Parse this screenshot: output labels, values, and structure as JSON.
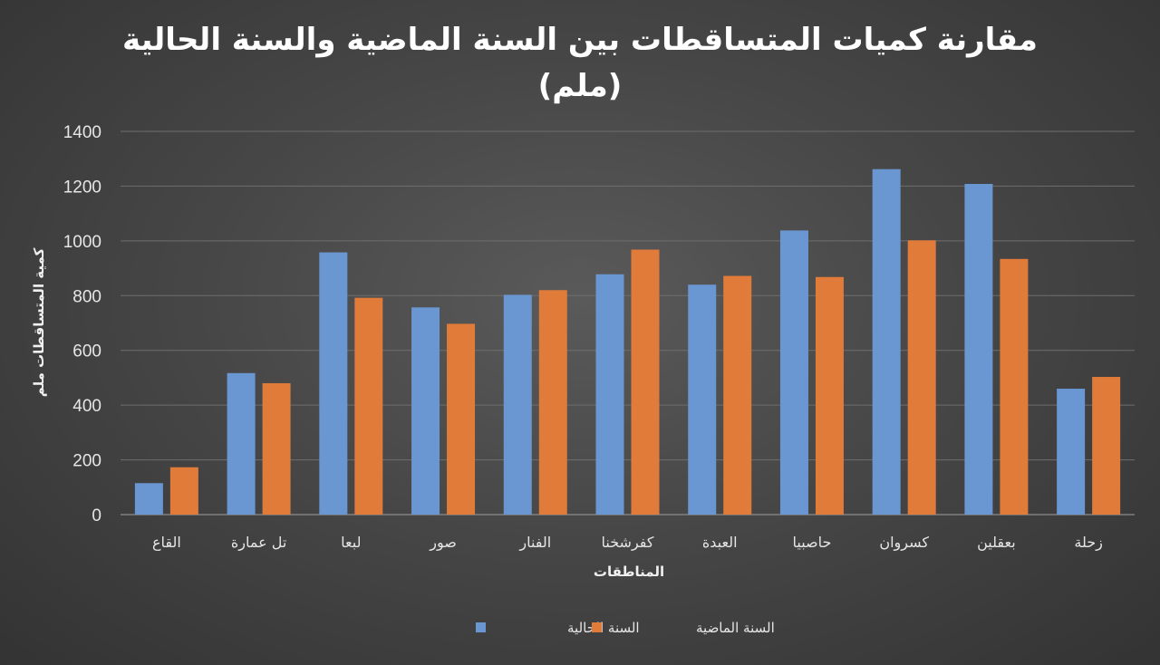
{
  "chart_data": {
    "type": "bar",
    "title_line1": "مقارنة كميات المتساقطات بين السنة الماضية والسنة الحالية",
    "title_line2": "(ملم)",
    "xlabel": "المناطقات",
    "ylabel": "كمية المتساقطات ملم",
    "ylim": [
      0,
      1400
    ],
    "yticks": [
      0,
      200,
      400,
      600,
      800,
      1000,
      1200,
      1400
    ],
    "grid": true,
    "legend_position": "bottom",
    "categories": [
      "القاع",
      "تل عمارة",
      "لبعا",
      "صور",
      "الفنار",
      "كفرشخنا",
      "العبدة",
      "حاصبيا",
      "كسروان",
      "بعقلين",
      "زحلة"
    ],
    "series": [
      {
        "name": "السنة الحالية",
        "color": "#6a96d2",
        "values": [
          115,
          517,
          958,
          757,
          803,
          878,
          840,
          1038,
          1262,
          1208,
          460
        ]
      },
      {
        "name": "السنة الماضية",
        "color": "#e07b3a",
        "values": [
          173,
          480,
          792,
          697,
          820,
          968,
          872,
          868,
          1002,
          934,
          503
        ]
      }
    ]
  }
}
